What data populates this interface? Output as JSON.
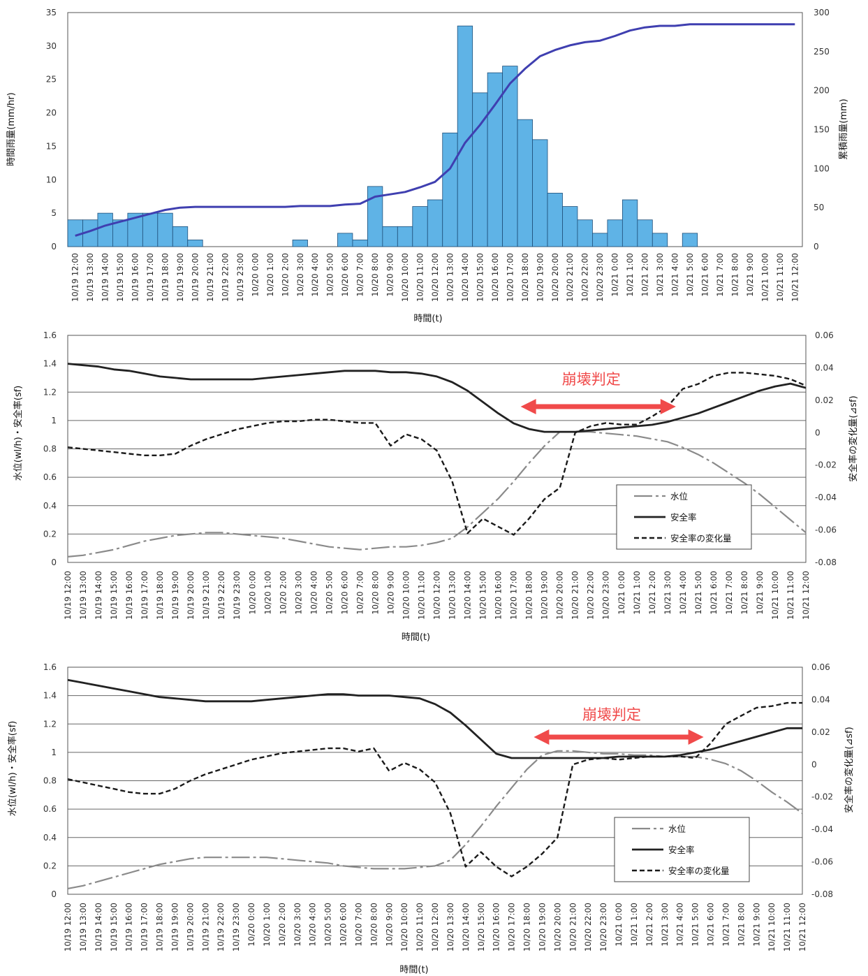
{
  "colors": {
    "bar_fill": "#5fb3e6",
    "bar_stroke": "#1f4e79",
    "cum_line": "#3f3fb0",
    "water_line": "#8a8a8a",
    "safety_line": "#222222",
    "delta_line": "#1a1a1a",
    "arrow": "#f04a4a",
    "grid": "#333333"
  },
  "times": [
    "10/19 12:00",
    "10/19 13:00",
    "10/19 14:00",
    "10/19 15:00",
    "10/19 16:00",
    "10/19 17:00",
    "10/19 18:00",
    "10/19 19:00",
    "10/19 20:00",
    "10/19 21:00",
    "10/19 22:00",
    "10/19 23:00",
    "10/20 0:00",
    "10/20 1:00",
    "10/20 2:00",
    "10/20 3:00",
    "10/20 4:00",
    "10/20 5:00",
    "10/20 6:00",
    "10/20 7:00",
    "10/20 8:00",
    "10/20 9:00",
    "10/20 10:00",
    "10/20 11:00",
    "10/20 12:00",
    "10/20 13:00",
    "10/20 14:00",
    "10/20 15:00",
    "10/20 16:00",
    "10/20 17:00",
    "10/20 18:00",
    "10/20 19:00",
    "10/20 20:00",
    "10/20 21:00",
    "10/20 22:00",
    "10/20 23:00",
    "10/21 0:00",
    "10/21 1:00",
    "10/21 2:00",
    "10/21 3:00",
    "10/21 4:00",
    "10/21 5:00",
    "10/21 6:00",
    "10/21 7:00",
    "10/21 8:00",
    "10/21 9:00",
    "10/21 10:00",
    "10/21 11:00",
    "10/21 12:00"
  ],
  "chart_data": [
    {
      "type": "bar",
      "xlabel": "時間(t)",
      "ylabel": "時間雨量(mm/hr)",
      "y2label": "累積雨量(mm)",
      "ylim": [
        0,
        35
      ],
      "yticks": [
        "0",
        "5",
        "10",
        "15",
        "20",
        "25",
        "30",
        "35"
      ],
      "y2lim": [
        0,
        300
      ],
      "y2ticks": [
        "0",
        "50",
        "100",
        "150",
        "200",
        "250",
        "300"
      ],
      "grid": false,
      "hourly_rain": [
        4,
        4,
        5,
        4,
        5,
        5,
        5,
        3,
        1,
        0,
        0,
        0,
        0,
        0,
        0,
        1,
        0,
        0,
        2,
        1,
        9,
        3,
        3,
        6,
        7,
        17,
        33,
        23,
        26,
        27,
        19,
        16,
        8,
        6,
        4,
        2,
        4,
        7,
        4,
        2,
        0,
        2,
        0,
        0,
        0,
        0,
        0,
        0,
        0
      ],
      "cumulative_rain": [
        14,
        20,
        27,
        32,
        37,
        42,
        47,
        50,
        51,
        51,
        51,
        51,
        51,
        51,
        51,
        52,
        52,
        52,
        54,
        55,
        64,
        67,
        70,
        76,
        83,
        100,
        133,
        156,
        182,
        209,
        228,
        244,
        252,
        258,
        262,
        264,
        270,
        277,
        281,
        283,
        283,
        285,
        285,
        285,
        285,
        285,
        285,
        285,
        285
      ]
    },
    {
      "type": "line",
      "xlabel": "時間(t)",
      "ylabel": "水位(wl/h)・安全率(sf)",
      "y2label": "安全率の変化量(⊿sf)",
      "ylim": [
        0,
        1.6
      ],
      "yticks": [
        "0",
        "0.2",
        "0.4",
        "0.6",
        "0.8",
        "1",
        "1.2",
        "1.4",
        "1.6"
      ],
      "y2lim": [
        -0.08,
        0.06
      ],
      "y2ticks": [
        "-0.08",
        "-0.06",
        "-0.04",
        "-0.02",
        "0",
        "0.02",
        "0.04",
        "0.06"
      ],
      "grid": true,
      "annotation": "崩壊判定",
      "arrow_range_x": [
        "10/20 18:00",
        "10/21 3:00"
      ],
      "legend": [
        "水位",
        "安全率",
        "安全率の変化量"
      ],
      "legend_position": "bottom-right",
      "series": [
        {
          "name": "水位",
          "axis": "left",
          "values": [
            0.04,
            0.05,
            0.07,
            0.09,
            0.12,
            0.15,
            0.17,
            0.19,
            0.2,
            0.21,
            0.21,
            0.2,
            0.19,
            0.18,
            0.17,
            0.15,
            0.13,
            0.11,
            0.1,
            0.09,
            0.1,
            0.11,
            0.11,
            0.12,
            0.14,
            0.17,
            0.25,
            0.35,
            0.45,
            0.57,
            0.7,
            0.82,
            0.92,
            0.92,
            0.92,
            0.91,
            0.9,
            0.89,
            0.87,
            0.85,
            0.81,
            0.76,
            0.7,
            0.63,
            0.56,
            0.48,
            0.39,
            0.3,
            0.21
          ]
        },
        {
          "name": "安全率",
          "axis": "left",
          "values": [
            1.4,
            1.39,
            1.38,
            1.36,
            1.35,
            1.33,
            1.31,
            1.3,
            1.29,
            1.29,
            1.29,
            1.29,
            1.29,
            1.3,
            1.31,
            1.32,
            1.33,
            1.34,
            1.35,
            1.35,
            1.35,
            1.34,
            1.34,
            1.33,
            1.31,
            1.27,
            1.21,
            1.13,
            1.05,
            0.98,
            0.94,
            0.92,
            0.92,
            0.92,
            0.93,
            0.94,
            0.95,
            0.96,
            0.97,
            0.99,
            1.02,
            1.05,
            1.09,
            1.13,
            1.17,
            1.21,
            1.24,
            1.26,
            1.23
          ]
        },
        {
          "name": "安全率の変化量",
          "axis": "right",
          "values": [
            -0.009,
            -0.01,
            -0.011,
            -0.012,
            -0.013,
            -0.014,
            -0.014,
            -0.013,
            -0.008,
            -0.004,
            -0.001,
            0.002,
            0.004,
            0.006,
            0.007,
            0.007,
            0.008,
            0.008,
            0.007,
            0.006,
            0.006,
            -0.008,
            -0.001,
            -0.004,
            -0.011,
            -0.03,
            -0.062,
            -0.053,
            -0.058,
            -0.063,
            -0.053,
            -0.041,
            -0.034,
            0.0,
            0.004,
            0.006,
            0.005,
            0.005,
            0.01,
            0.016,
            0.027,
            0.03,
            0.035,
            0.037,
            0.037,
            0.036,
            0.035,
            0.033,
            0.029
          ]
        }
      ]
    },
    {
      "type": "line",
      "xlabel": "時間(t)",
      "ylabel": "水位(wl/h)・安全率(sf)",
      "y2label": "安全率の変化量(⊿sf)",
      "ylim": [
        0,
        1.6
      ],
      "yticks": [
        "0",
        "0.2",
        "0.4",
        "0.6",
        "0.8",
        "1",
        "1.2",
        "1.4",
        "1.6"
      ],
      "y2lim": [
        -0.08,
        0.06
      ],
      "y2ticks": [
        "-0.08",
        "-0.06",
        "-0.04",
        "-0.02",
        "0",
        "0.02",
        "0.04",
        "0.06"
      ],
      "grid": true,
      "annotation": "崩壊判定",
      "arrow_range_x": [
        "10/20 19:00",
        "10/21 5:00"
      ],
      "legend": [
        "水位",
        "安全率",
        "安全率の変化量"
      ],
      "legend_position": "bottom-right",
      "series": [
        {
          "name": "水位",
          "axis": "left",
          "values": [
            0.04,
            0.06,
            0.09,
            0.12,
            0.15,
            0.18,
            0.21,
            0.23,
            0.25,
            0.26,
            0.26,
            0.26,
            0.26,
            0.26,
            0.25,
            0.24,
            0.23,
            0.22,
            0.2,
            0.19,
            0.18,
            0.18,
            0.18,
            0.19,
            0.2,
            0.24,
            0.35,
            0.48,
            0.62,
            0.75,
            0.88,
            0.98,
            1.01,
            1.01,
            1.0,
            0.99,
            0.99,
            0.98,
            0.98,
            0.97,
            0.97,
            0.97,
            0.95,
            0.92,
            0.87,
            0.8,
            0.72,
            0.65,
            0.57
          ]
        },
        {
          "name": "安全率",
          "axis": "left",
          "values": [
            1.51,
            1.49,
            1.47,
            1.45,
            1.43,
            1.41,
            1.39,
            1.38,
            1.37,
            1.36,
            1.36,
            1.36,
            1.36,
            1.37,
            1.38,
            1.39,
            1.4,
            1.41,
            1.41,
            1.4,
            1.4,
            1.4,
            1.39,
            1.38,
            1.34,
            1.28,
            1.19,
            1.09,
            0.99,
            0.96,
            0.96,
            0.96,
            0.96,
            0.96,
            0.96,
            0.96,
            0.97,
            0.97,
            0.97,
            0.97,
            0.98,
            1.0,
            1.02,
            1.05,
            1.08,
            1.11,
            1.14,
            1.17,
            1.17
          ]
        },
        {
          "name": "安全率の変化量",
          "axis": "right",
          "values": [
            -0.009,
            -0.011,
            -0.013,
            -0.015,
            -0.017,
            -0.018,
            -0.018,
            -0.015,
            -0.01,
            -0.006,
            -0.003,
            0.0,
            0.003,
            0.005,
            0.007,
            0.008,
            0.009,
            0.01,
            0.01,
            0.008,
            0.01,
            -0.004,
            0.001,
            -0.003,
            -0.011,
            -0.03,
            -0.063,
            -0.054,
            -0.063,
            -0.069,
            -0.063,
            -0.055,
            -0.045,
            0.0,
            0.003,
            0.004,
            0.003,
            0.004,
            0.005,
            0.005,
            0.005,
            0.004,
            0.013,
            0.025,
            0.03,
            0.035,
            0.036,
            0.038,
            0.038
          ]
        }
      ]
    }
  ]
}
